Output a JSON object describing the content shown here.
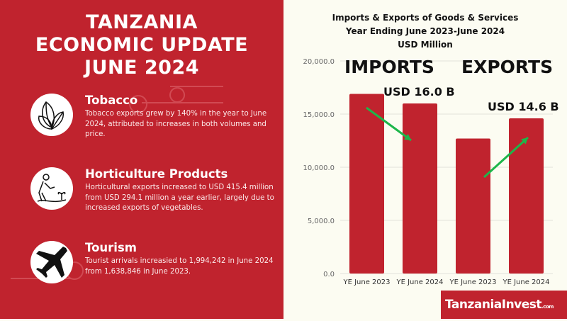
{
  "left": {
    "title_lines": [
      "TANZANIA",
      "ECONOMIC UPDATE",
      "JUNE 2024"
    ],
    "items": [
      {
        "icon": "tobacco-leaves-icon",
        "heading": "Tobacco",
        "text": "Tobacco exports grew by 140% in the year to June 2024, attributed to increases in both volumes and price."
      },
      {
        "icon": "farmer-planting-icon",
        "heading": "Horticulture Products",
        "text": "Horticultural exports increased to USD 415.4 million from USD 294.1 million a year earlier, largely due to increased exports of vegetables."
      },
      {
        "icon": "airplane-icon",
        "heading": "Tourism",
        "text": "Tourist arrivals increasied to 1,994,242 in June 2024 from 1,638,846 in June 2023."
      }
    ]
  },
  "annotations": {
    "imports": "IMPORTS",
    "exports": "EXPORTS",
    "imports_value": "USD 16.0 B",
    "exports_value": "USD 14.6 B"
  },
  "logo": {
    "text": "TanzaniaInvest",
    "suffix": ".com"
  },
  "colors": {
    "panel": "#c0232e",
    "bar": "#c0232e",
    "arrow": "#1db64a",
    "background": "#fcfcf2"
  },
  "chart_data": {
    "type": "bar",
    "title": "Imports & Exports of Goods & Services",
    "subtitle_lines": [
      "Year Ending June 2023-June 2024",
      "USD Million"
    ],
    "categories": [
      "YE June 2023",
      "YE June 2024",
      "YE June 2023",
      "YE June 2024"
    ],
    "groups": [
      "IMPORTS",
      "IMPORTS",
      "EXPORTS",
      "EXPORTS"
    ],
    "values": [
      16900,
      16000,
      12700,
      14600
    ],
    "ylim": [
      0,
      20000
    ],
    "yticks": [
      "0.0",
      "5,000.0",
      "10,000.0",
      "15,000.0",
      "20,000.0"
    ],
    "ytick_values": [
      0,
      5000,
      10000,
      15000,
      20000
    ],
    "grid": true
  }
}
